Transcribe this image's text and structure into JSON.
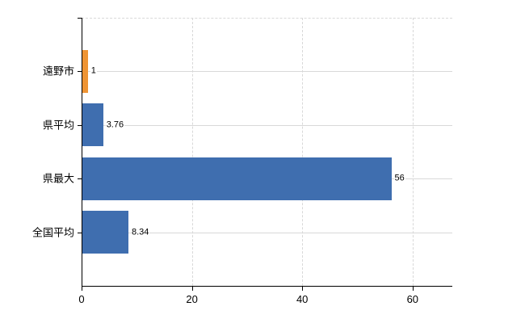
{
  "chart_data": {
    "type": "bar",
    "orientation": "horizontal",
    "title": "",
    "categories": [
      "遠野市",
      "県平均",
      "県最大",
      "全国平均"
    ],
    "values": [
      1,
      3.76,
      56,
      8.34
    ],
    "value_labels": [
      "1",
      "3.76",
      "56",
      "8.34"
    ],
    "bar_colors": [
      "#EE9434",
      "#3F6EAF",
      "#3F6EAF",
      "#3F6EAF"
    ],
    "xlim": [
      0,
      67.2
    ],
    "x_ticks": [
      0,
      20,
      40,
      60
    ],
    "x_tick_labels": [
      "0",
      "20",
      "40",
      "60"
    ],
    "grid": true,
    "legend": "none"
  },
  "colors": {
    "axis": "#000000",
    "grid_line": "#d9d9d9",
    "text": "#000000",
    "background": "#ffffff",
    "highlight_bar": "#EE9434",
    "default_bar": "#3F6EAF"
  }
}
